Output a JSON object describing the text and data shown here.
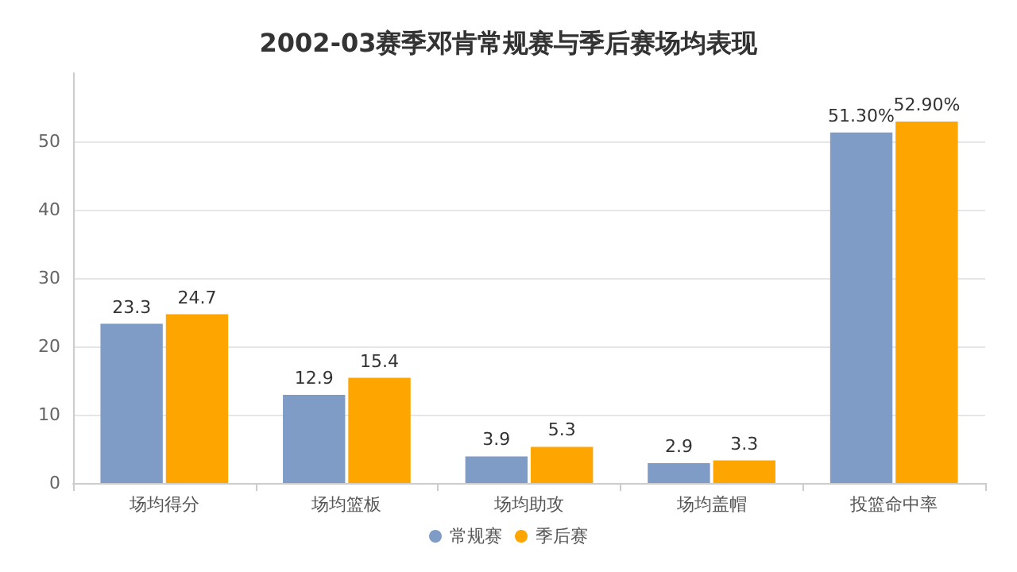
{
  "chart_data": {
    "type": "bar",
    "title": "2002-03赛季邓肯常规赛与季后赛场均表现",
    "categories": [
      "场均得分",
      "场均篮板",
      "场均助攻",
      "场均盖帽",
      "投篮命中率"
    ],
    "series": [
      {
        "name": "常规赛",
        "color": "#7f9cc6",
        "values": [
          23.3,
          12.9,
          3.9,
          2.9,
          51.3
        ],
        "value_labels": [
          "23.3",
          "12.9",
          "3.9",
          "2.9",
          "51.30%"
        ]
      },
      {
        "name": "季后赛",
        "color": "#ffa500",
        "values": [
          24.7,
          15.4,
          5.3,
          3.3,
          52.9
        ],
        "value_labels": [
          "24.7",
          "15.4",
          "5.3",
          "3.3",
          "52.90%"
        ]
      }
    ],
    "ylim": [
      0,
      60
    ],
    "yticks": [
      0,
      10,
      20,
      30,
      40,
      50
    ],
    "grid": "y",
    "legend": "bottom"
  }
}
